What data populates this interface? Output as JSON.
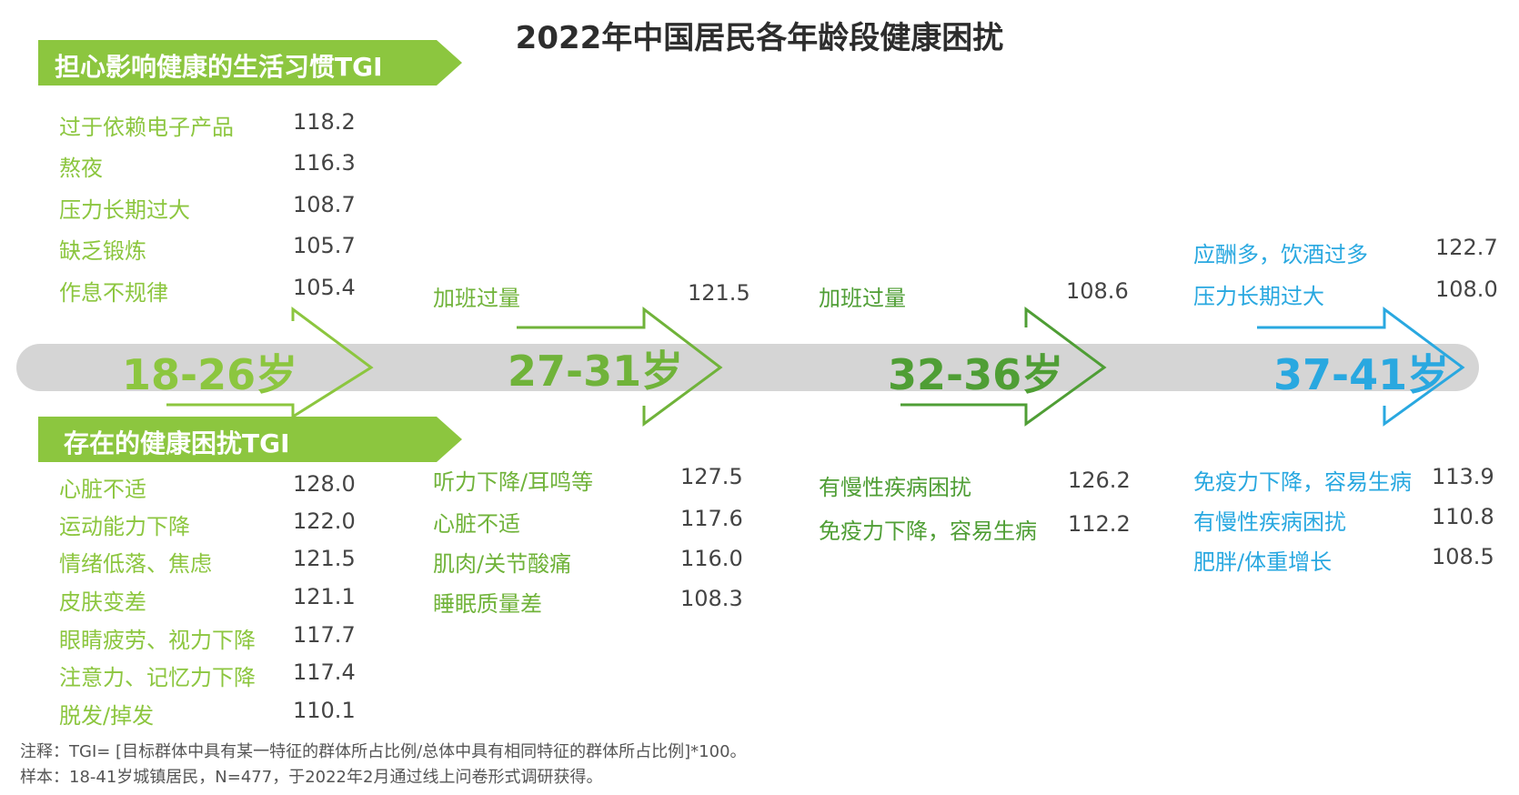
{
  "title": "2022年中国居民各年龄段健康困扰",
  "colors": {
    "green_light": "#8cc63f",
    "green_mid": "#70b33a",
    "green_dark": "#4f9e35",
    "blue": "#29a8e0",
    "band": "#d5d5d5"
  },
  "banner_habits": "担心影响健康的生活习惯TGI",
  "banner_troubles": "存在的健康困扰TGI",
  "notes": {
    "line1": "注释：TGI= [目标群体中具有某一特征的群体所占比例/总体中具有相同特征的群体所占比例]*100。",
    "line2": "样本：18-41岁城镇居民，N=477，于2022年2月通过线上问卷形式调研获得。"
  },
  "chart_data": {
    "type": "table",
    "stages": [
      {
        "label": "18-26岁",
        "color": "#8cc63f",
        "habits": [
          {
            "name": "过于依赖电子产品",
            "value": "118.2"
          },
          {
            "name": "熬夜",
            "value": "116.3"
          },
          {
            "name": "压力长期过大",
            "value": "108.7"
          },
          {
            "name": "缺乏锻炼",
            "value": "105.7"
          },
          {
            "name": "作息不规律",
            "value": "105.4"
          }
        ],
        "troubles": [
          {
            "name": "心脏不适",
            "value": "128.0"
          },
          {
            "name": "运动能力下降",
            "value": "122.0"
          },
          {
            "name": "情绪低落、焦虑",
            "value": "121.5"
          },
          {
            "name": "皮肤变差",
            "value": "121.1"
          },
          {
            "name": "眼睛疲劳、视力下降",
            "value": "117.7"
          },
          {
            "name": "注意力、记忆力下降",
            "value": "117.4"
          },
          {
            "name": "脱发/掉发",
            "value": "110.1"
          }
        ]
      },
      {
        "label": "27-31岁",
        "color": "#70b33a",
        "habits": [
          {
            "name": "加班过量",
            "value": "121.5"
          }
        ],
        "troubles": [
          {
            "name": "听力下降/耳鸣等",
            "value": "127.5"
          },
          {
            "name": "心脏不适",
            "value": "117.6"
          },
          {
            "name": "肌肉/关节酸痛",
            "value": "116.0"
          },
          {
            "name": "睡眠质量差",
            "value": "108.3"
          }
        ]
      },
      {
        "label": "32-36岁",
        "color": "#4f9e35",
        "habits": [
          {
            "name": "加班过量",
            "value": "108.6"
          }
        ],
        "troubles": [
          {
            "name": "有慢性疾病困扰",
            "value": "126.2"
          },
          {
            "name": "免疫力下降，容易生病",
            "value": "112.2"
          }
        ]
      },
      {
        "label": "37-41岁",
        "color": "#29a8e0",
        "habits": [
          {
            "name": "应酬多，饮酒过多",
            "value": "122.7"
          },
          {
            "name": "压力长期过大",
            "value": "108.0"
          }
        ],
        "troubles": [
          {
            "name": "免疫力下降，容易生病",
            "value": "113.9"
          },
          {
            "name": "有慢性疾病困扰",
            "value": "110.8"
          },
          {
            "name": "肥胖/体重增长",
            "value": "108.5"
          }
        ]
      }
    ]
  }
}
